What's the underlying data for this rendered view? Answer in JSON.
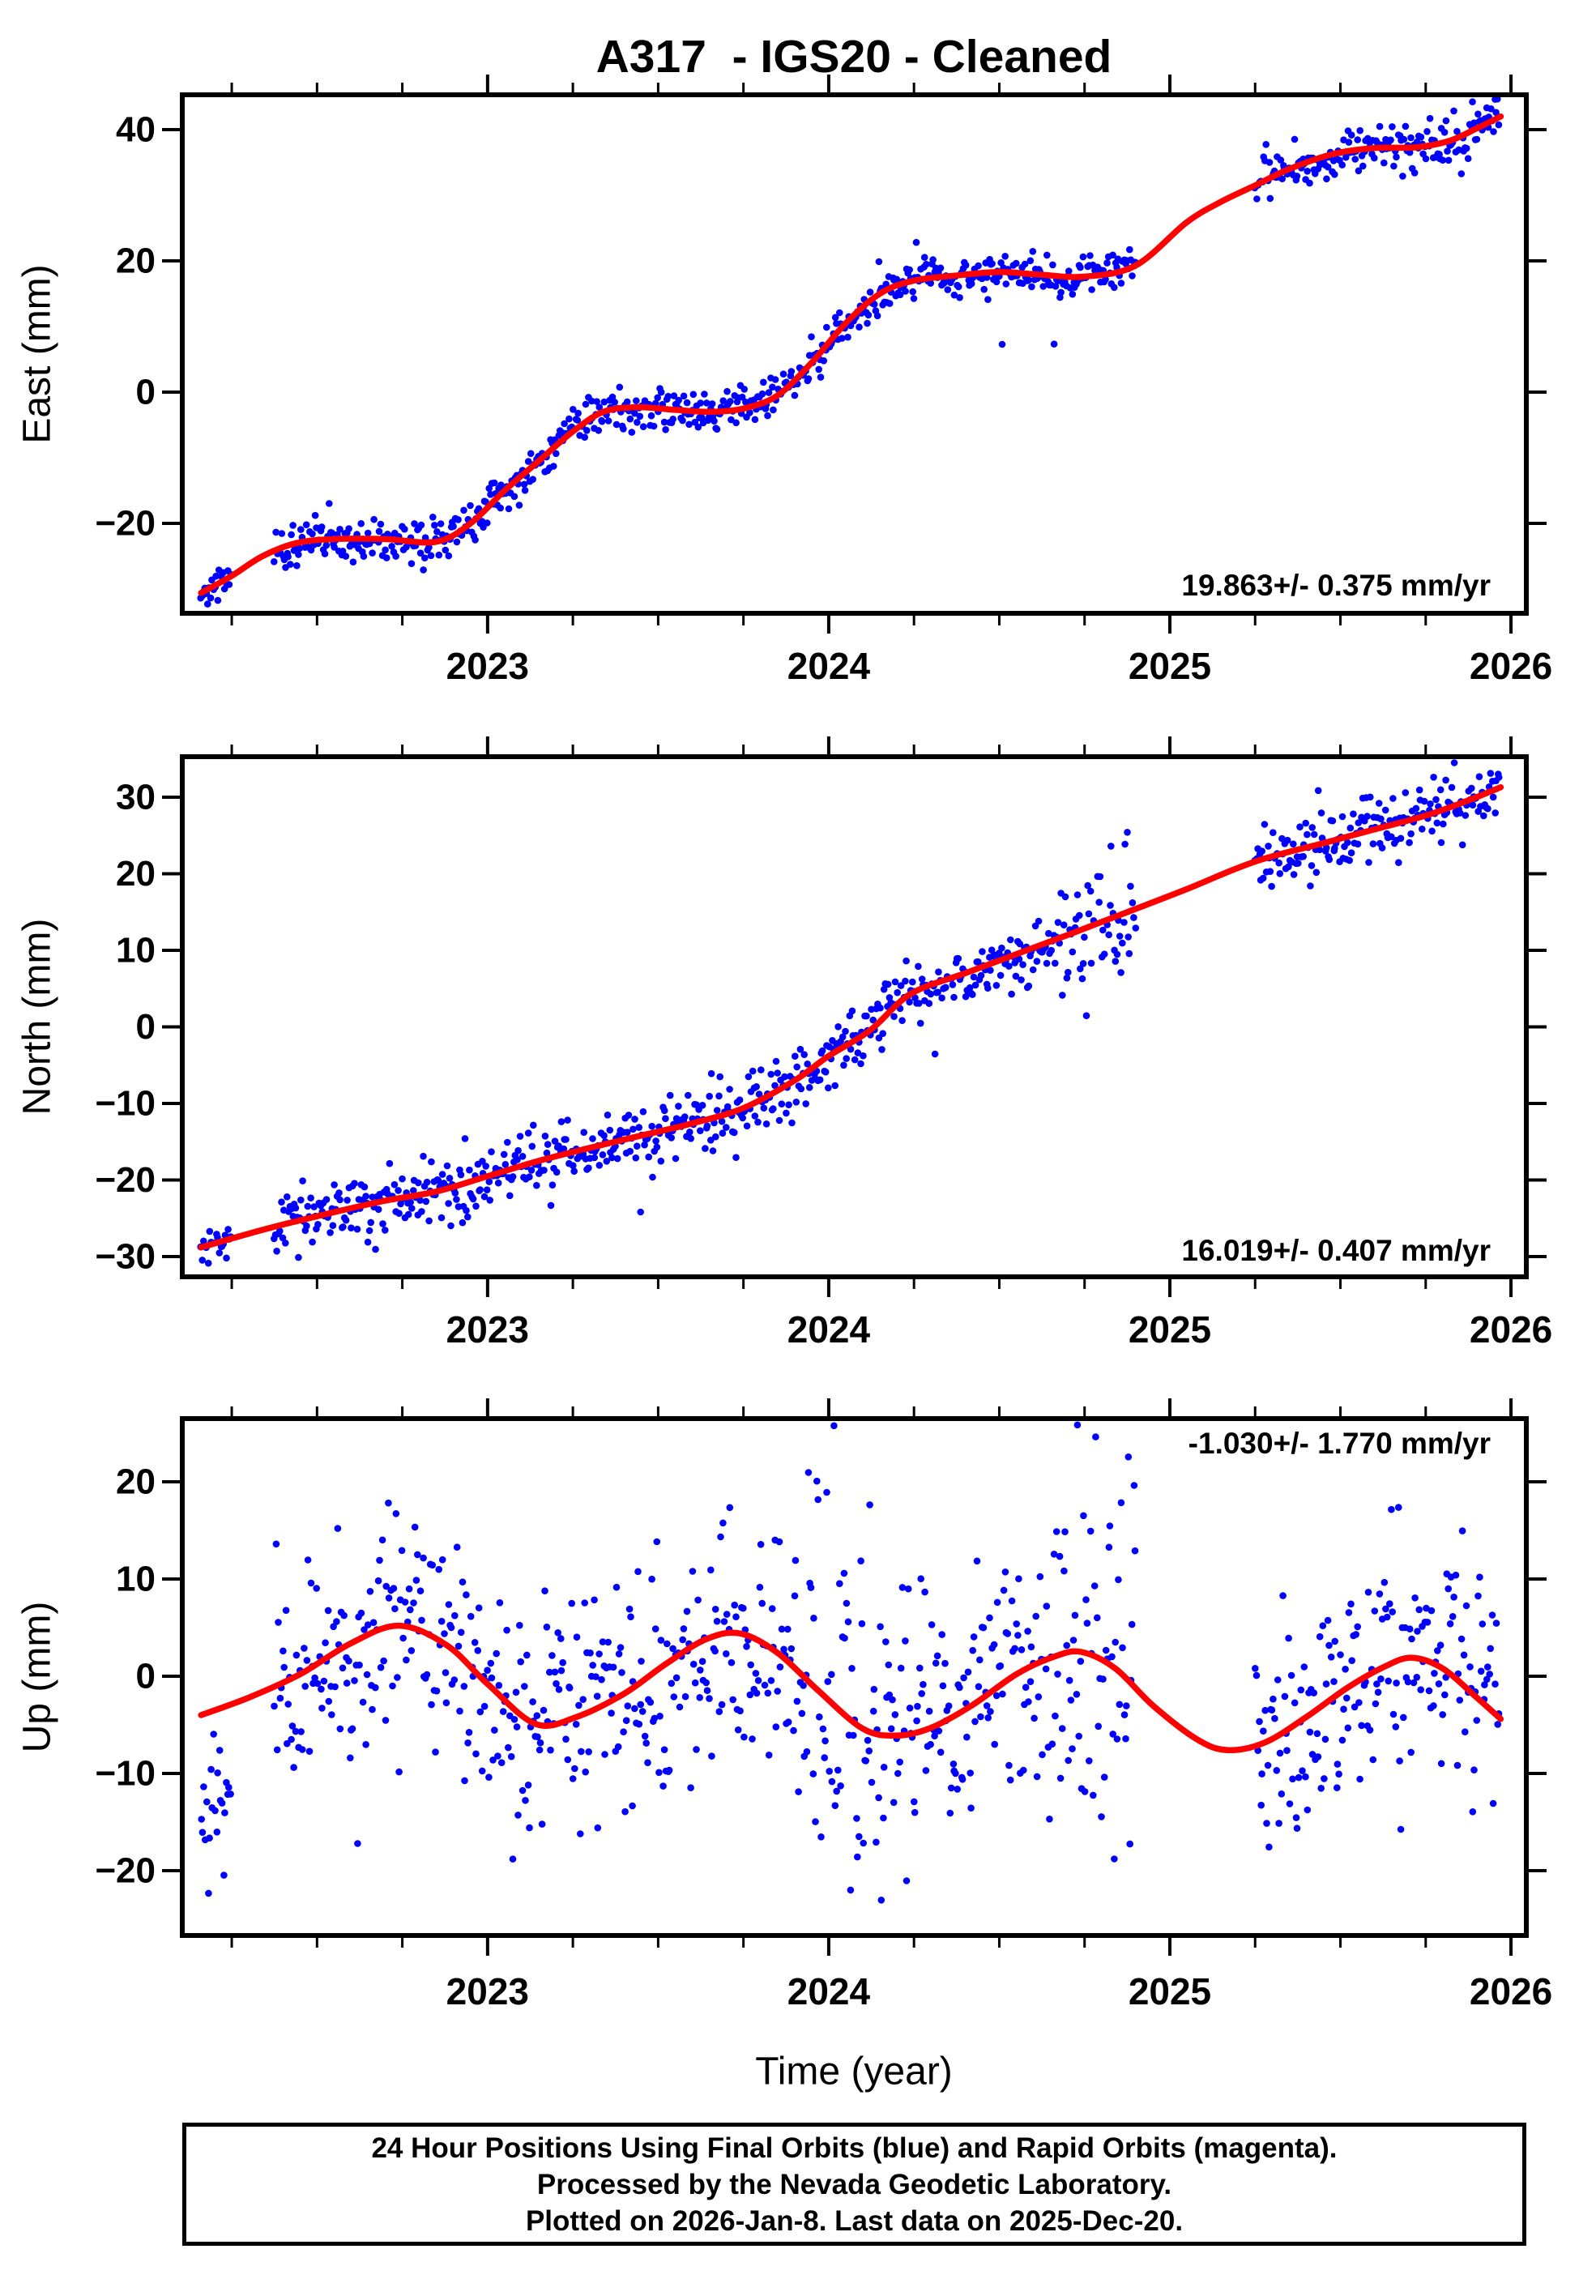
{
  "title": "A317  - IGS20 - Cleaned",
  "xlabel": "Time (year)",
  "colors": {
    "points": "#0000ff",
    "trend": "#ff0000",
    "frame": "#000000",
    "background": "#ffffff"
  },
  "time_axis": {
    "xlim": [
      2022.105,
      2026.045
    ],
    "major_ticks": [
      2023,
      2024,
      2025,
      2026
    ],
    "minor_tick_interval": 0.25,
    "first_data": 2022.16,
    "last_data": 2025.968,
    "data_segments": [
      [
        2022.16,
        2022.25
      ],
      [
        2022.375,
        2024.9
      ],
      [
        2025.25,
        2025.968
      ]
    ]
  },
  "chart_data": [
    {
      "type": "scatter",
      "name": "East",
      "ylabel": "East (mm)",
      "rate_label": "19.863+/- 0.375 mm/yr",
      "ylim": [
        -33.7,
        45.3
      ],
      "yticks": [
        40,
        20,
        0,
        -20
      ],
      "x_range": [
        2022.16,
        2025.968
      ],
      "scatter_sigma_mm": 1.7,
      "start_cluster_sigma_mm": 1.1,
      "outlier_window": [
        2024.5,
        2024.95
      ],
      "trend_knots": [
        [
          2022.16,
          -30.6
        ],
        [
          2022.25,
          -28.0
        ],
        [
          2022.34,
          -25.0
        ],
        [
          2022.44,
          -23.0
        ],
        [
          2022.55,
          -22.4
        ],
        [
          2022.7,
          -22.4
        ],
        [
          2022.85,
          -22.8
        ],
        [
          2022.95,
          -20.0
        ],
        [
          2023.05,
          -15.0
        ],
        [
          2023.15,
          -10.5
        ],
        [
          2023.25,
          -6.0
        ],
        [
          2023.34,
          -3.0
        ],
        [
          2023.44,
          -2.3
        ],
        [
          2023.55,
          -2.7
        ],
        [
          2023.65,
          -3.0
        ],
        [
          2023.75,
          -2.5
        ],
        [
          2023.85,
          -0.5
        ],
        [
          2023.95,
          4.5
        ],
        [
          2024.05,
          10.5
        ],
        [
          2024.15,
          15.0
        ],
        [
          2024.25,
          17.0
        ],
        [
          2024.38,
          17.8
        ],
        [
          2024.5,
          18.3
        ],
        [
          2024.62,
          17.9
        ],
        [
          2024.75,
          17.6
        ],
        [
          2024.9,
          19.3
        ],
        [
          2025.05,
          25.9
        ],
        [
          2025.15,
          29.0
        ],
        [
          2025.25,
          31.5
        ],
        [
          2025.35,
          34.0
        ],
        [
          2025.48,
          36.3
        ],
        [
          2025.6,
          37.2
        ],
        [
          2025.72,
          37.3
        ],
        [
          2025.82,
          38.3
        ],
        [
          2025.9,
          40.2
        ],
        [
          2025.97,
          42.0
        ]
      ]
    },
    {
      "type": "scatter",
      "name": "North",
      "ylabel": "North (mm)",
      "rate_label": "16.019+/- 0.407 mm/yr",
      "ylim": [
        -32.6,
        35.3
      ],
      "yticks": [
        30,
        20,
        10,
        0,
        -10,
        -20,
        -30
      ],
      "x_range": [
        2022.16,
        2025.968
      ],
      "scatter_sigma_mm": 2.1,
      "start_cluster_sigma_mm": 1.1,
      "wide_window": [
        2024.68,
        2024.95
      ],
      "trend_knots": [
        [
          2022.16,
          -28.8
        ],
        [
          2022.3,
          -27.0
        ],
        [
          2022.42,
          -25.6
        ],
        [
          2022.55,
          -24.2
        ],
        [
          2022.7,
          -22.7
        ],
        [
          2022.85,
          -21.5
        ],
        [
          2023.0,
          -19.5
        ],
        [
          2023.15,
          -17.5
        ],
        [
          2023.3,
          -15.8
        ],
        [
          2023.45,
          -14.2
        ],
        [
          2023.6,
          -12.6
        ],
        [
          2023.75,
          -10.6
        ],
        [
          2023.9,
          -7.0
        ],
        [
          2024.0,
          -3.8
        ],
        [
          2024.12,
          -0.5
        ],
        [
          2024.24,
          4.3
        ],
        [
          2024.4,
          7.0
        ],
        [
          2024.55,
          9.5
        ],
        [
          2024.7,
          12.0
        ],
        [
          2024.87,
          14.9
        ],
        [
          2025.05,
          18.0
        ],
        [
          2025.25,
          21.6
        ],
        [
          2025.45,
          24.0
        ],
        [
          2025.6,
          25.8
        ],
        [
          2025.75,
          27.6
        ],
        [
          2025.87,
          29.5
        ],
        [
          2025.97,
          31.3
        ]
      ]
    },
    {
      "type": "scatter",
      "name": "Up",
      "ylabel": "Up (mm)",
      "rate_label": "-1.030+/- 1.770 mm/yr",
      "ylim": [
        -26.7,
        26.5
      ],
      "yticks": [
        20,
        10,
        0,
        -10,
        -20
      ],
      "x_range": [
        2022.16,
        2025.968
      ],
      "scatter_sigma_mm": 6.3,
      "start_cluster_bias_mm": -13.5,
      "start_cluster_sigma_mm": 3.2,
      "spray_windows": [
        [
          2023.93,
          2024.14
        ],
        [
          2024.68,
          2024.93
        ]
      ],
      "trend_knots": [
        [
          2022.16,
          -4.0
        ],
        [
          2022.3,
          -2.2
        ],
        [
          2022.45,
          0.2
        ],
        [
          2022.6,
          3.4
        ],
        [
          2022.74,
          5.2
        ],
        [
          2022.88,
          3.2
        ],
        [
          2023.0,
          -0.8
        ],
        [
          2023.14,
          -4.9
        ],
        [
          2023.26,
          -4.2
        ],
        [
          2023.4,
          -1.8
        ],
        [
          2023.52,
          1.2
        ],
        [
          2023.64,
          3.8
        ],
        [
          2023.74,
          4.4
        ],
        [
          2023.85,
          2.4
        ],
        [
          2023.97,
          -1.5
        ],
        [
          2024.1,
          -5.4
        ],
        [
          2024.2,
          -6.1
        ],
        [
          2024.3,
          -5.3
        ],
        [
          2024.42,
          -3.0
        ],
        [
          2024.55,
          0.2
        ],
        [
          2024.66,
          2.0
        ],
        [
          2024.74,
          2.5
        ],
        [
          2024.84,
          0.8
        ],
        [
          2024.95,
          -3.0
        ],
        [
          2025.08,
          -6.5
        ],
        [
          2025.17,
          -7.6
        ],
        [
          2025.28,
          -6.8
        ],
        [
          2025.4,
          -4.2
        ],
        [
          2025.52,
          -1.2
        ],
        [
          2025.63,
          1.0
        ],
        [
          2025.71,
          1.9
        ],
        [
          2025.8,
          0.8
        ],
        [
          2025.9,
          -2.2
        ],
        [
          2025.97,
          -4.4
        ]
      ]
    }
  ],
  "footer": {
    "lines": [
      "24 Hour Positions Using Final Orbits (blue) and Rapid Orbits (magenta).",
      "Processed by the Nevada Geodetic Laboratory.",
      "Plotted on 2026-Jan-8. Last data on 2025-Dec-20."
    ]
  }
}
